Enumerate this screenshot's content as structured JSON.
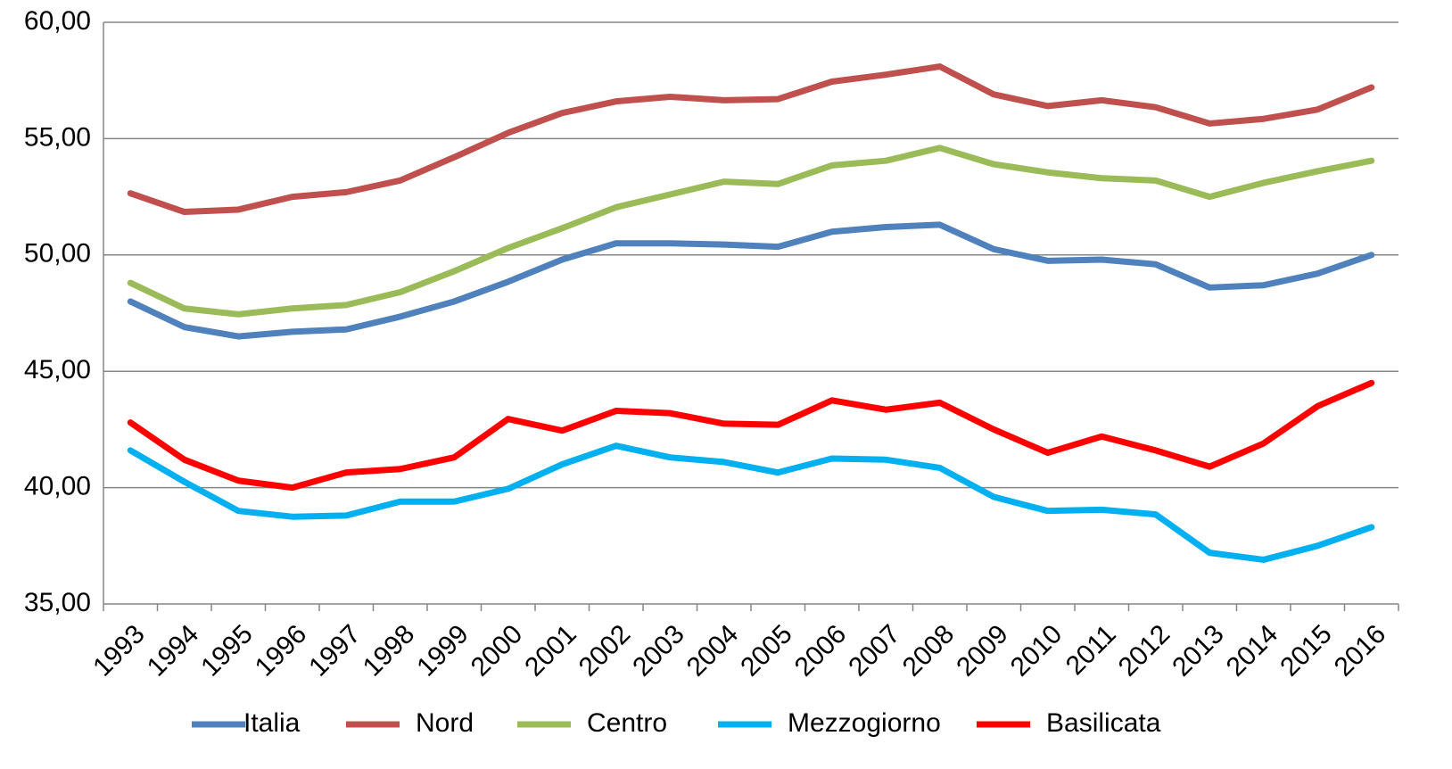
{
  "chart_data": {
    "type": "line",
    "categories": [
      "1993",
      "1994",
      "1995",
      "1996",
      "1997",
      "1998",
      "1999",
      "2000",
      "2001",
      "2002",
      "2003",
      "2004",
      "2005",
      "2006",
      "2007",
      "2008",
      "2009",
      "2010",
      "2011",
      "2012",
      "2013",
      "2014",
      "2015",
      "2016"
    ],
    "series": [
      {
        "name": "Italia",
        "color": "#4f81bd",
        "values": [
          48.0,
          46.9,
          46.5,
          46.7,
          46.8,
          47.35,
          48.0,
          48.85,
          49.8,
          50.5,
          50.5,
          50.45,
          50.35,
          51.0,
          51.2,
          51.3,
          50.25,
          49.75,
          49.8,
          49.6,
          48.6,
          48.7,
          49.2,
          50.0
        ]
      },
      {
        "name": "Nord",
        "color": "#c0504d",
        "values": [
          52.65,
          51.85,
          51.95,
          52.5,
          52.7,
          53.2,
          54.2,
          55.25,
          56.1,
          56.6,
          56.8,
          56.65,
          56.7,
          57.45,
          57.75,
          58.1,
          56.9,
          56.4,
          56.65,
          56.35,
          55.65,
          55.85,
          56.25,
          57.2
        ]
      },
      {
        "name": "Centro",
        "color": "#9bbb59",
        "values": [
          48.8,
          47.7,
          47.45,
          47.7,
          47.85,
          48.4,
          49.3,
          50.3,
          51.15,
          52.05,
          52.6,
          53.15,
          53.05,
          53.85,
          54.05,
          54.6,
          53.9,
          53.55,
          53.3,
          53.2,
          52.5,
          53.1,
          53.6,
          54.05
        ]
      },
      {
        "name": "Mezzogiorno",
        "color": "#00b0f0",
        "values": [
          41.6,
          40.25,
          39.0,
          38.75,
          38.8,
          39.4,
          39.4,
          39.95,
          41.0,
          41.8,
          41.3,
          41.1,
          40.65,
          41.25,
          41.2,
          40.85,
          39.6,
          39.0,
          39.05,
          38.85,
          37.2,
          36.9,
          37.5,
          38.3
        ]
      },
      {
        "name": "Basilicata",
        "color": "#ff0000",
        "values": [
          42.8,
          41.2,
          40.3,
          40.0,
          40.65,
          40.8,
          41.3,
          42.95,
          42.45,
          43.3,
          43.2,
          42.75,
          42.7,
          43.75,
          43.35,
          43.65,
          42.5,
          41.5,
          42.2,
          41.6,
          40.9,
          41.9,
          43.5,
          44.5
        ]
      }
    ],
    "ylim": [
      35,
      60
    ],
    "yticks": [
      {
        "value": 35,
        "label": "35,00"
      },
      {
        "value": 40,
        "label": "40,00"
      },
      {
        "value": 45,
        "label": "45,00"
      },
      {
        "value": 50,
        "label": "50,00"
      },
      {
        "value": 55,
        "label": "55,00"
      },
      {
        "value": 60,
        "label": "60,00"
      }
    ],
    "grid": true,
    "legend": "bottom"
  }
}
